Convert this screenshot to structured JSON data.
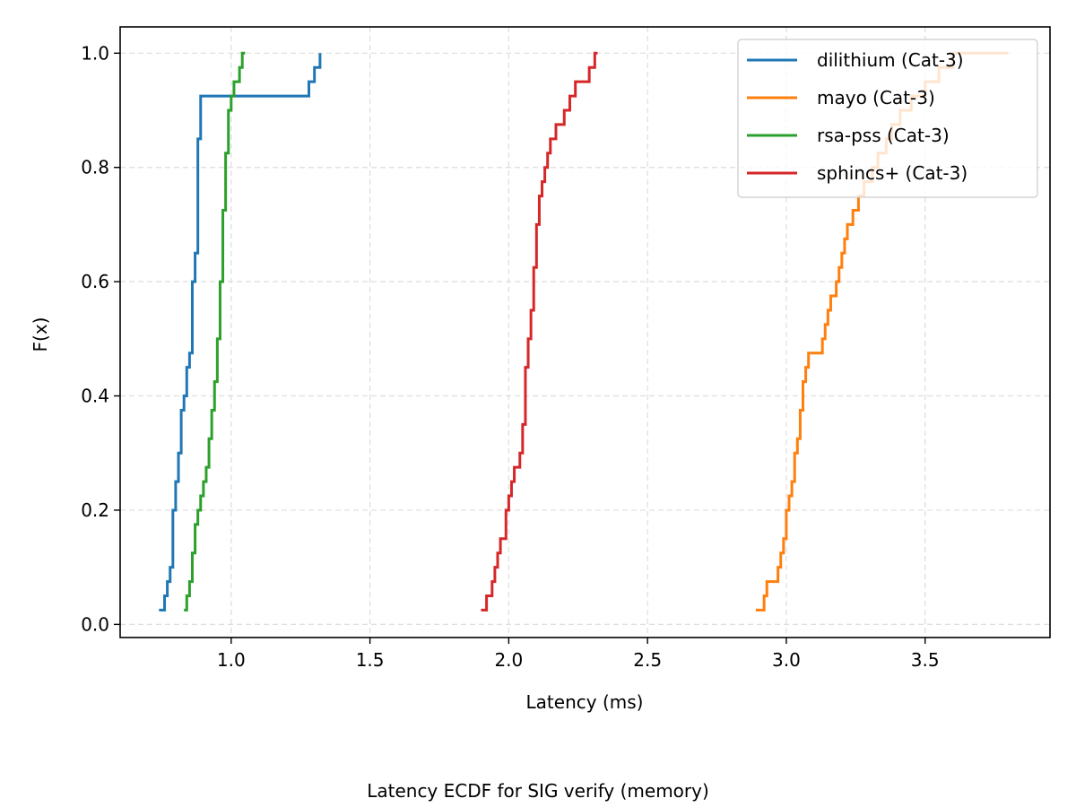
{
  "chart_data": {
    "type": "line",
    "step": true,
    "title": "",
    "caption": "Latency ECDF for SIG verify (memory)",
    "xlabel": "Latency (ms)",
    "ylabel": "F(x)",
    "xlim": [
      0.6,
      3.95
    ],
    "ylim": [
      -0.023,
      1.046
    ],
    "xticks": [
      1.0,
      1.5,
      2.0,
      2.5,
      3.0,
      3.5
    ],
    "xtick_labels": [
      "1.0",
      "1.5",
      "2.0",
      "2.5",
      "3.0",
      "3.5"
    ],
    "yticks": [
      0.0,
      0.2,
      0.4,
      0.6,
      0.8,
      1.0
    ],
    "ytick_labels": [
      "0.0",
      "0.2",
      "0.4",
      "0.6",
      "0.8",
      "1.0"
    ],
    "grid": true,
    "legend_position": "top-right",
    "series": [
      {
        "name": "dilithium (Cat-3)",
        "color": "#1f77b4",
        "x": [
          0.74,
          0.76,
          0.77,
          0.78,
          0.79,
          0.8,
          0.81,
          0.82,
          0.83,
          0.84,
          0.85,
          0.86,
          0.86,
          0.87,
          0.87,
          0.88,
          0.88,
          0.88,
          0.88,
          0.89,
          0.89,
          0.89,
          0.89,
          0.89,
          0.9,
          0.9,
          0.9,
          0.9,
          0.9,
          0.9,
          0.9,
          0.91,
          0.91,
          0.91,
          0.91,
          0.91,
          0.91,
          1.28,
          1.3,
          1.32
        ],
        "y": [
          0.025,
          0.05,
          0.075,
          0.1,
          0.2,
          0.25,
          0.3,
          0.375,
          0.4,
          0.45,
          0.475,
          0.55,
          0.6,
          0.625,
          0.65,
          0.775,
          0.8,
          0.825,
          0.85,
          0.875,
          0.9,
          0.925,
          0.925,
          0.925,
          0.925,
          0.925,
          0.925,
          0.925,
          0.925,
          0.925,
          0.925,
          0.925,
          0.925,
          0.925,
          0.925,
          0.925,
          0.925,
          0.95,
          0.975,
          1.0
        ]
      },
      {
        "name": "mayo (Cat-3)",
        "color": "#ff7f0e",
        "x": [
          2.89,
          2.92,
          2.93,
          2.97,
          2.98,
          2.99,
          3.0,
          3.01,
          3.02,
          3.03,
          3.04,
          3.05,
          3.06,
          3.07,
          3.08,
          3.13,
          3.14,
          3.15,
          3.16,
          3.18,
          3.19,
          3.2,
          3.21,
          3.22,
          3.24,
          3.26,
          3.28,
          3.31,
          3.33,
          3.36,
          3.38,
          3.41,
          3.45,
          3.5,
          3.55,
          3.6,
          3.66,
          3.71,
          3.76,
          3.8
        ],
        "y": [
          0.025,
          0.05,
          0.075,
          0.1,
          0.125,
          0.15,
          0.2,
          0.225,
          0.25,
          0.3,
          0.325,
          0.375,
          0.425,
          0.45,
          0.475,
          0.5,
          0.525,
          0.55,
          0.575,
          0.6,
          0.625,
          0.65,
          0.675,
          0.7,
          0.725,
          0.75,
          0.775,
          0.8,
          0.825,
          0.85,
          0.875,
          0.9,
          0.925,
          0.95,
          0.975,
          1.0,
          1.0,
          1.0,
          1.0,
          1.0
        ]
      },
      {
        "name": "rsa-pss (Cat-3)",
        "color": "#2ca02c",
        "x": [
          0.83,
          0.84,
          0.85,
          0.86,
          0.87,
          0.88,
          0.89,
          0.9,
          0.91,
          0.92,
          0.92,
          0.93,
          0.93,
          0.94,
          0.94,
          0.95,
          0.95,
          0.96,
          0.96,
          0.96,
          0.96,
          0.97,
          0.97,
          0.97,
          0.97,
          0.98,
          0.98,
          0.98,
          0.99,
          0.99,
          1.0,
          1.0,
          1.01,
          1.01,
          1.02,
          1.03,
          1.04,
          1.04,
          1.05,
          1.05
        ],
        "y": [
          0.025,
          0.05,
          0.075,
          0.125,
          0.175,
          0.2,
          0.225,
          0.25,
          0.275,
          0.3,
          0.325,
          0.35,
          0.375,
          0.4,
          0.425,
          0.45,
          0.5,
          0.525,
          0.55,
          0.575,
          0.6,
          0.625,
          0.65,
          0.7,
          0.725,
          0.775,
          0.8,
          0.825,
          0.85,
          0.9,
          0.925,
          0.925,
          0.95,
          0.95,
          0.95,
          0.975,
          0.975,
          1.0,
          1.0,
          1.0
        ]
      },
      {
        "name": "sphincs+ (Cat-3)",
        "color": "#d62728",
        "x": [
          1.9,
          1.92,
          1.94,
          1.95,
          1.96,
          1.97,
          1.99,
          2.0,
          2.01,
          2.02,
          2.04,
          2.05,
          2.05,
          2.06,
          2.06,
          2.06,
          2.07,
          2.07,
          2.08,
          2.08,
          2.09,
          2.09,
          2.09,
          2.1,
          2.1,
          2.1,
          2.11,
          2.11,
          2.12,
          2.13,
          2.14,
          2.15,
          2.17,
          2.2,
          2.22,
          2.24,
          2.26,
          2.29,
          2.31,
          2.32
        ],
        "y": [
          0.025,
          0.05,
          0.075,
          0.1,
          0.125,
          0.15,
          0.2,
          0.225,
          0.25,
          0.275,
          0.3,
          0.325,
          0.35,
          0.375,
          0.4,
          0.45,
          0.475,
          0.5,
          0.525,
          0.55,
          0.575,
          0.6,
          0.625,
          0.65,
          0.675,
          0.7,
          0.725,
          0.75,
          0.775,
          0.8,
          0.825,
          0.85,
          0.875,
          0.9,
          0.925,
          0.95,
          0.95,
          0.975,
          1.0,
          1.0
        ]
      }
    ]
  }
}
